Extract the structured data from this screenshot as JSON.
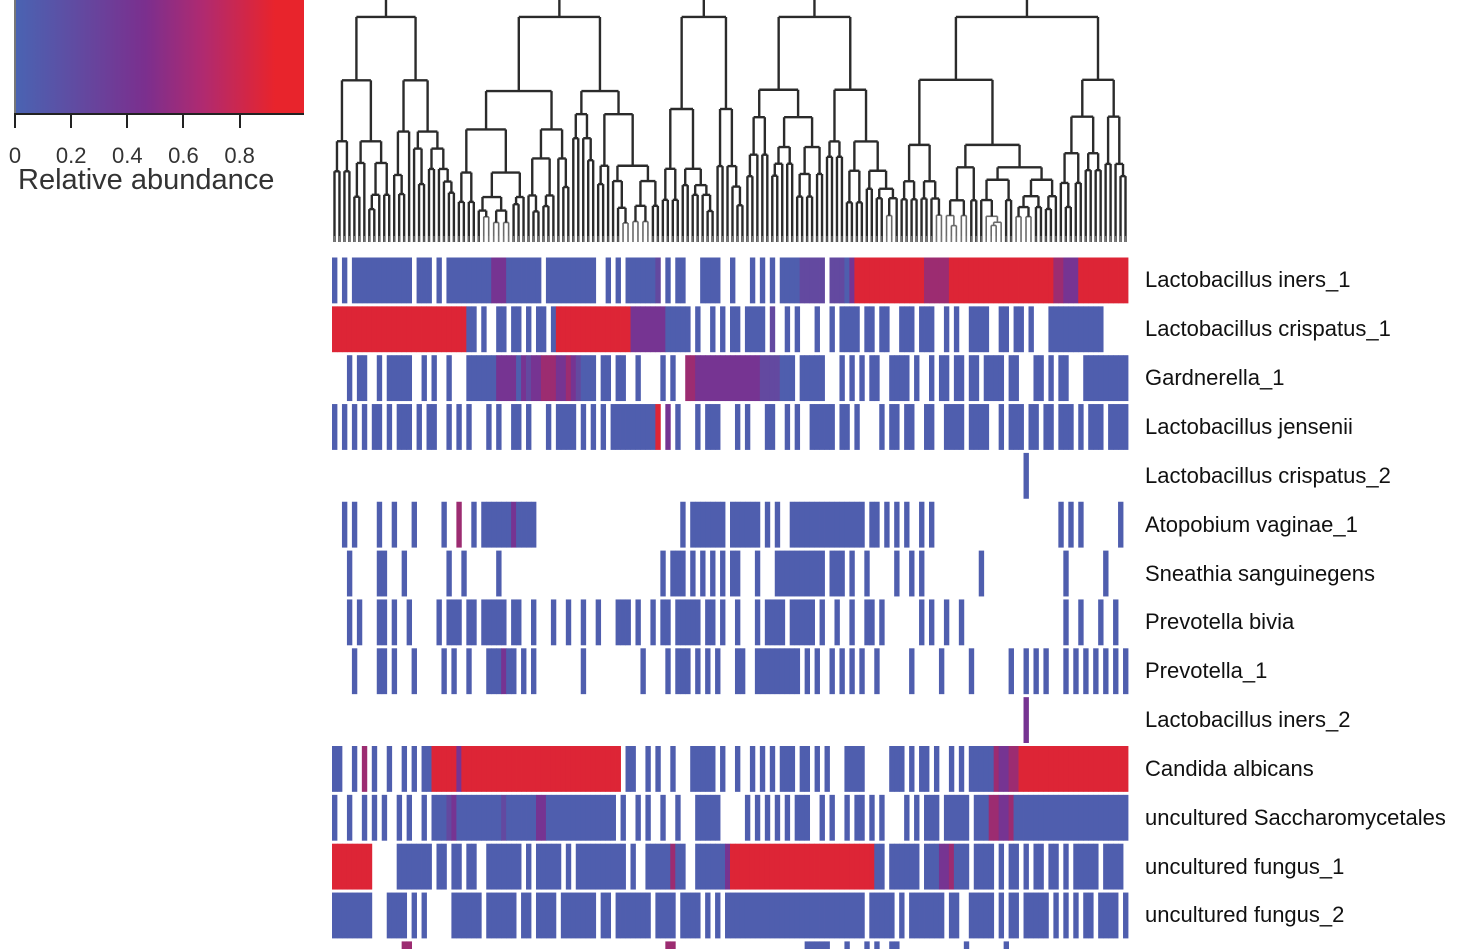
{
  "legend": {
    "title": "Relative abundance",
    "ticks": [
      "0",
      "0.2",
      "0.4",
      "0.6",
      "0.8"
    ],
    "tick_values": [
      0,
      0.2,
      0.4,
      0.6,
      0.8
    ],
    "range": [
      0,
      1
    ],
    "colors": {
      "low": "#4a63b2",
      "mid": "#7b2f8e",
      "high": "#e8242c",
      "zero": "#ffffff"
    }
  },
  "chart_data": {
    "type": "heatmap",
    "title": "",
    "xlabel": "",
    "ylabel": "",
    "colorbar_label": "Relative abundance",
    "value_range": [
      0,
      1
    ],
    "column_dendrogram": true,
    "n_columns": 160,
    "level_values": {
      ".": 0,
      "1": 0.05,
      "2": 0.25,
      "3": 0.45,
      "4": 0.65,
      "5": 0.95
    },
    "rows": [
      {
        "label": "Lactobacillus iners_1",
        "cells": "1.1.111111111111.111.1.1111111113331111111.1111111111..1.1.1111112.1.11...1111..1...1.1.1.111122222.222135555555555555544444555555555555555555555443335555555555555555"
      },
      {
        "label": "Lactobacillus crispatus_1",
        "cells": "55555555555555555555555555511.1..11.11.1.11.1555555555555555333333311111.1..1.1.11.1111.2..1.1...1..1.1111.11.11..111.111..1.1..1111..11.11.1...11111111111.....111111111"
      },
      {
        "label": "Gardnerella_1",
        "cells": "...1.11..1.11111..1.1..1...11111133331323344433432111.11.11..1....1.1..4433333333333332222111.11111...1.1.1.11..1111.1..1.11.11.11.1111.11...11.1.11...1111111111.1.1.."
      },
      {
        "label": "Lactobacillus jensenii",
        "cells": "1.1.1.1.11.1.111.1.11..1.1.1...1.1..11.1...1.1111.1.1.1.1111111115.3.1...1.111...1.1...11..1.1..11111.11.1....1.11.11..11..1111.1111..1.111.11.11.111.1.111.1111111111"
      },
      {
        "label": "Lactobacillus crispatus_2",
        "cells": "...........................................................................................................................................1......................"
      },
      {
        "label": "Atopobium vaginae_1",
        "cells": "..1.1....1..1...1.....1..4..1.11111131111.............................1.1111111.111111.1.1..111111111111111.11.1.1.1..1.1.........................1.1.1.......1..1.."
      },
      {
        "label": "Sneathia sanguinegens",
        "cells": "...1.....11...1........1..1......1................................1.111.1.1.1.1.11...1...1111111111.111.1..1.....1..1.1...........1................1.......1.....1..."
      },
      {
        "label": "Prevotella bivia",
        "cells": "...1.1...11.1..1.....1.111.11.11111.11..1...1..1..1..1...111.1..1.11.11111.11.1..1...1.1111.11111.1..1..1..11.1.......1.1..1..1....................1..1...1..1.."
      },
      {
        "label": "Prevotella_1",
        "cells": "....1....11.1...1.....1.1..1...111311.1.1.........1...........1....1.111.1.1.1...11..111111111.1.1..1.1.1.1..1......1.....1.....1.......1..1.1.1...1.1.1.1.1.1.1.1"
      },
      {
        "label": "Lactobacillus iners_2",
        "cells": "...........................................................................................................................................3......................"
      },
      {
        "label": "Candida albicans",
        "cells": "11..1.4.1..1..1.1.1155555355555555555555555555555555555555.11..1.1..1...11111.1..1..1.1.1.111.11.1.1...1111.....111.1.11.1..1.1.11111433445555555555555555555555555555555"
      },
      {
        "label": "uncultured Saccharomycetales",
        "cells": "1..1..1.1.1..1.1..1.1112311111111121111113311111111111111.1..1.1..1..1...11111.....1.1.1.1.1.111..1.1..1.11.1.1....1.1.111.11111.11144334111111111111111111111111111111"
      },
      {
        "label": "uncultured fungus_1",
        "cells": "55555555.....1111111.11.11.11..1111111.1.11111.1.1111111111.1..11111411..11111135555555555555555555555555555511.111111.111334111.1111.1.11.1.11.11.1.11111.1111.11.11.."
      },
      {
        "label": "uncultured fungus_2",
        "cells": "11111111...1111.1.1.....111111.111111.11.1111.1111111.11.1111111.1111.1111.1.1.1111111111111111111111111111.11111.1.1111111.11..11111.1.11.11111.1.1.1.11.1111.111.1111"
      }
    ],
    "partial_bottom_row_cells": "..............44...................................................44..........................11111...1...1.1..11.............1.......1..............................."
  }
}
